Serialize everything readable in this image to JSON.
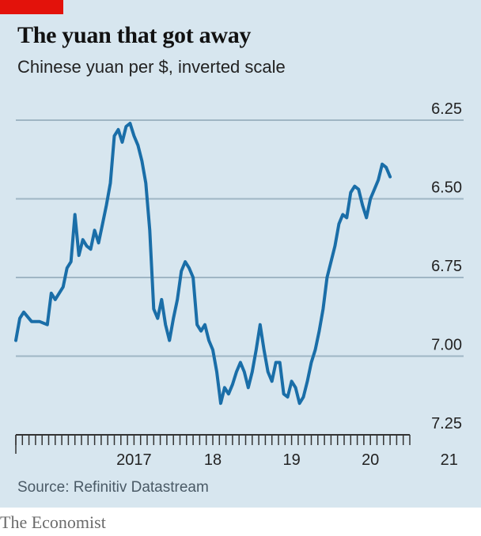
{
  "header": {
    "title": "The yuan that got away",
    "subtitle": "Chinese yuan per $, inverted scale"
  },
  "footer": {
    "source": "Source: Refinitiv Datastream",
    "brand": "The Economist"
  },
  "colors": {
    "background": "#d7e6ef",
    "line": "#1a6ea8",
    "grid": "#9fb6c4",
    "accent": "#e3120b"
  },
  "chart_data": {
    "type": "line",
    "title": "The yuan that got away",
    "subtitle": "Chinese yuan per $, inverted scale",
    "y_inverted": true,
    "ylim": [
      7.25,
      6.25
    ],
    "yticks": [
      6.25,
      6.5,
      6.75,
      7.0,
      7.25
    ],
    "ytick_labels": [
      "6.25",
      "6.50",
      "6.75",
      "7.00",
      "7.25"
    ],
    "xlim": [
      2016.0,
      2021.0
    ],
    "xticks": [
      2017.0,
      2018.0,
      2019.0,
      2020.0,
      2021.0
    ],
    "xtick_labels": [
      "2017",
      "18",
      "19",
      "20",
      "21"
    ],
    "grid": true,
    "series": [
      {
        "values": [
          [
            2016.0,
            6.95
          ],
          [
            2016.05,
            6.88
          ],
          [
            2016.1,
            6.86
          ],
          [
            2016.2,
            6.89
          ],
          [
            2016.3,
            6.89
          ],
          [
            2016.4,
            6.9
          ],
          [
            2016.45,
            6.8
          ],
          [
            2016.5,
            6.82
          ],
          [
            2016.6,
            6.78
          ],
          [
            2016.65,
            6.72
          ],
          [
            2016.7,
            6.7
          ],
          [
            2016.75,
            6.55
          ],
          [
            2016.8,
            6.68
          ],
          [
            2016.85,
            6.63
          ],
          [
            2016.9,
            6.65
          ],
          [
            2016.95,
            6.66
          ],
          [
            2017.0,
            6.6
          ],
          [
            2017.05,
            6.64
          ],
          [
            2017.1,
            6.58
          ],
          [
            2017.15,
            6.52
          ],
          [
            2017.2,
            6.45
          ],
          [
            2017.25,
            6.3
          ],
          [
            2017.3,
            6.28
          ],
          [
            2017.35,
            6.32
          ],
          [
            2017.4,
            6.27
          ],
          [
            2017.45,
            6.26
          ],
          [
            2017.5,
            6.3
          ],
          [
            2017.55,
            6.33
          ],
          [
            2017.6,
            6.38
          ],
          [
            2017.65,
            6.45
          ],
          [
            2017.7,
            6.6
          ],
          [
            2017.75,
            6.85
          ],
          [
            2017.8,
            6.88
          ],
          [
            2017.85,
            6.82
          ],
          [
            2017.9,
            6.9
          ],
          [
            2017.95,
            6.95
          ],
          [
            2018.0,
            6.88
          ],
          [
            2018.05,
            6.82
          ],
          [
            2018.1,
            6.73
          ],
          [
            2018.15,
            6.7
          ],
          [
            2018.2,
            6.72
          ],
          [
            2018.25,
            6.75
          ],
          [
            2018.3,
            6.9
          ],
          [
            2018.35,
            6.92
          ],
          [
            2018.4,
            6.9
          ],
          [
            2018.45,
            6.95
          ],
          [
            2018.5,
            6.98
          ],
          [
            2018.55,
            7.05
          ],
          [
            2018.6,
            7.15
          ],
          [
            2018.65,
            7.1
          ],
          [
            2018.7,
            7.12
          ],
          [
            2018.75,
            7.09
          ],
          [
            2018.8,
            7.05
          ],
          [
            2018.85,
            7.02
          ],
          [
            2018.9,
            7.05
          ],
          [
            2018.95,
            7.1
          ],
          [
            2019.0,
            7.05
          ],
          [
            2019.05,
            6.98
          ],
          [
            2019.1,
            6.9
          ],
          [
            2019.15,
            6.98
          ],
          [
            2019.2,
            7.05
          ],
          [
            2019.25,
            7.08
          ],
          [
            2019.3,
            7.02
          ],
          [
            2019.35,
            7.02
          ],
          [
            2019.4,
            7.12
          ],
          [
            2019.45,
            7.13
          ],
          [
            2019.5,
            7.08
          ],
          [
            2019.55,
            7.1
          ],
          [
            2019.6,
            7.15
          ],
          [
            2019.65,
            7.13
          ],
          [
            2019.7,
            7.08
          ],
          [
            2019.75,
            7.02
          ],
          [
            2019.8,
            6.98
          ],
          [
            2019.85,
            6.92
          ],
          [
            2019.9,
            6.85
          ],
          [
            2019.95,
            6.75
          ],
          [
            2020.0,
            6.7
          ],
          [
            2020.05,
            6.65
          ],
          [
            2020.1,
            6.58
          ],
          [
            2020.15,
            6.55
          ],
          [
            2020.2,
            6.56
          ],
          [
            2020.25,
            6.48
          ],
          [
            2020.3,
            6.46
          ],
          [
            2020.35,
            6.47
          ],
          [
            2020.4,
            6.52
          ],
          [
            2020.45,
            6.56
          ],
          [
            2020.5,
            6.5
          ],
          [
            2020.55,
            6.47
          ],
          [
            2020.6,
            6.44
          ],
          [
            2020.65,
            6.39
          ],
          [
            2020.7,
            6.4
          ],
          [
            2020.75,
            6.43
          ]
        ]
      }
    ]
  }
}
